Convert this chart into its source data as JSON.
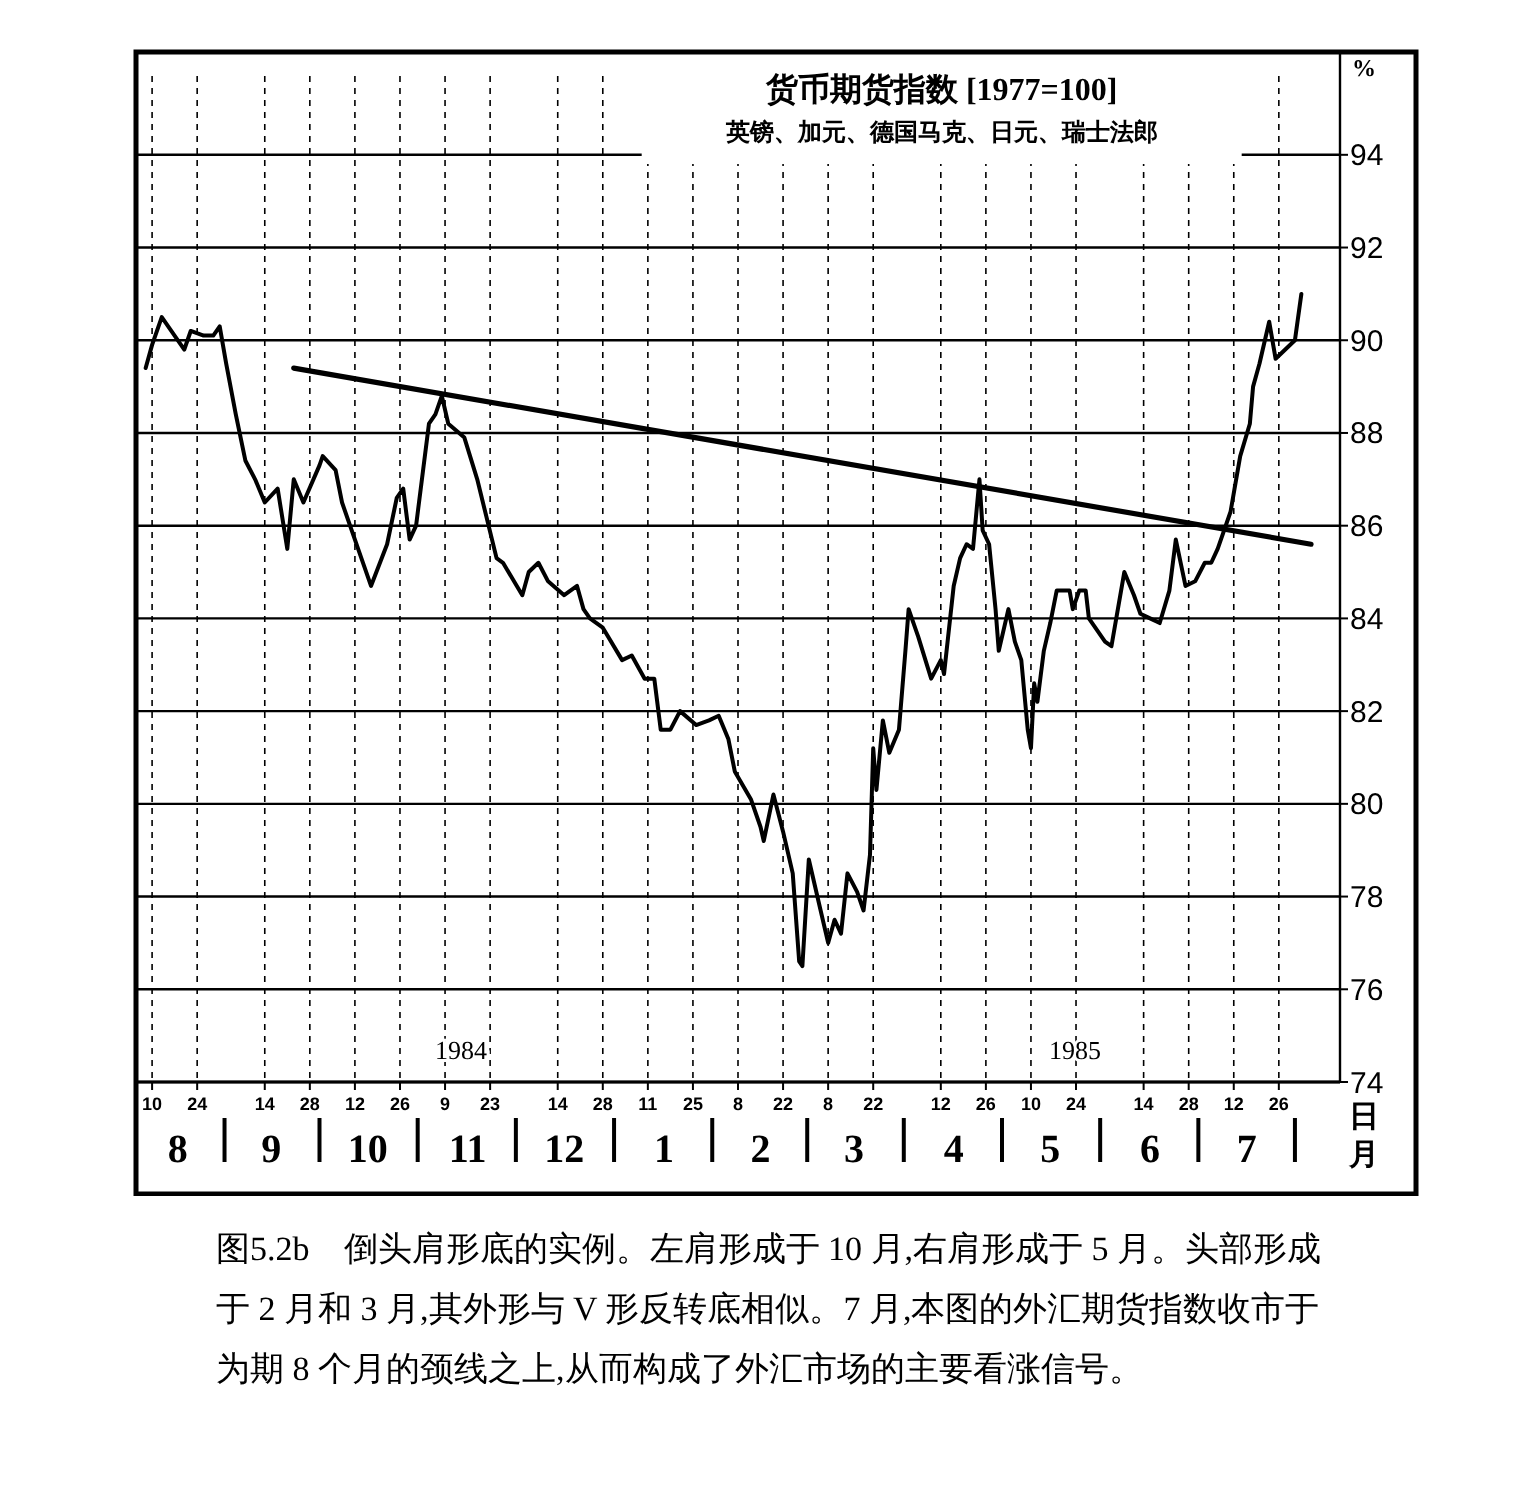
{
  "chart_data": {
    "type": "line",
    "title": "货币期货指数 [1977=100]",
    "subtitle": "英镑、加元、德国马克、日元、瑞士法郎",
    "ylabel": "%",
    "xlabel": "日",
    "x2label": "月",
    "xlim": [
      "1984-08-05",
      "1985-08-14"
    ],
    "xticks": [
      {
        "value": "1984-08-10",
        "label": "10"
      },
      {
        "value": "1984-08-24",
        "label": "24"
      },
      {
        "value": "1984-09-14",
        "label": "14"
      },
      {
        "value": "1984-09-28",
        "label": "28"
      },
      {
        "value": "1984-10-12",
        "label": "12"
      },
      {
        "value": "1984-10-26",
        "label": "26"
      },
      {
        "value": "1984-11-09",
        "label": "9"
      },
      {
        "value": "1984-11-23",
        "label": "23"
      },
      {
        "value": "1984-12-14",
        "label": "14"
      },
      {
        "value": "1984-12-28",
        "label": "28"
      },
      {
        "value": "1985-01-11",
        "label": "11"
      },
      {
        "value": "1985-01-25",
        "label": "25"
      },
      {
        "value": "1985-02-08",
        "label": "8"
      },
      {
        "value": "1985-02-22",
        "label": "22"
      },
      {
        "value": "1985-03-08",
        "label": "8"
      },
      {
        "value": "1985-03-22",
        "label": "22"
      },
      {
        "value": "1985-04-12",
        "label": "12"
      },
      {
        "value": "1985-04-26",
        "label": "26"
      },
      {
        "value": "1985-05-10",
        "label": "10"
      },
      {
        "value": "1985-05-24",
        "label": "24"
      },
      {
        "value": "1985-06-14",
        "label": "14"
      },
      {
        "value": "1985-06-28",
        "label": "28"
      },
      {
        "value": "1985-07-12",
        "label": "12"
      },
      {
        "value": "1985-07-26",
        "label": "26"
      }
    ],
    "x2lim": [
      "1984-08-05",
      "1985-08-14"
    ],
    "x2ticks": [
      {
        "value": "1984-08-18",
        "label": "8"
      },
      {
        "value": "1984-09-16",
        "label": "9"
      },
      {
        "value": "1984-10-16",
        "label": "10"
      },
      {
        "value": "1984-11-16",
        "label": "11"
      },
      {
        "value": "1984-12-16",
        "label": "12"
      },
      {
        "value": "1985-01-16",
        "label": "1"
      },
      {
        "value": "1985-02-15",
        "label": "2"
      },
      {
        "value": "1985-03-16",
        "label": "3"
      },
      {
        "value": "1985-04-16",
        "label": "4"
      },
      {
        "value": "1985-05-16",
        "label": "5"
      },
      {
        "value": "1985-06-16",
        "label": "6"
      },
      {
        "value": "1985-07-16",
        "label": "7"
      }
    ],
    "ylim": [
      74,
      95.7
    ],
    "yticks": [
      74,
      76,
      78,
      80,
      82,
      84,
      86,
      88,
      90,
      92,
      94
    ],
    "grid": true,
    "series": [
      {
        "color": "#000000",
        "x": [
          "1984-08-08",
          "1984-08-10",
          "1984-08-13",
          "1984-08-20",
          "1984-08-22",
          "1984-08-26",
          "1984-08-29",
          "1984-08-31",
          "1984-09-02",
          "1984-09-05",
          "1984-09-08",
          "1984-09-11",
          "1984-09-14",
          "1984-09-18",
          "1984-09-21",
          "1984-09-23",
          "1984-09-26",
          "1984-10-01",
          "1984-10-02",
          "1984-10-06",
          "1984-10-08",
          "1984-10-14",
          "1984-10-17",
          "1984-10-22",
          "1984-10-25",
          "1984-10-27",
          "1984-10-29",
          "1984-10-31",
          "1984-11-04",
          "1984-11-06",
          "1984-11-08",
          "1984-11-10",
          "1984-11-15",
          "1984-11-19",
          "1984-11-25",
          "1984-11-27",
          "1984-12-03",
          "1984-12-05",
          "1984-12-08",
          "1984-12-11",
          "1984-12-16",
          "1984-12-20",
          "1984-12-22",
          "1984-12-24",
          "1984-12-28",
          "1985-01-03",
          "1985-01-06",
          "1985-01-10",
          "1985-01-13",
          "1985-01-15",
          "1985-01-18",
          "1985-01-21",
          "1985-01-26",
          "1985-01-30",
          "1985-02-02",
          "1985-02-05",
          "1985-02-07",
          "1985-02-12",
          "1985-02-15",
          "1985-02-16",
          "1985-02-19",
          "1985-02-22",
          "1985-02-25",
          "1985-02-27",
          "1985-02-28",
          "1985-03-02",
          "1985-03-05",
          "1985-03-08",
          "1985-03-10",
          "1985-03-12",
          "1985-03-14",
          "1985-03-17",
          "1985-03-19",
          "1985-03-21",
          "1985-03-22",
          "1985-03-23",
          "1985-03-25",
          "1985-03-27",
          "1985-03-30",
          "1985-04-01",
          "1985-04-02",
          "1985-04-05",
          "1985-04-09",
          "1985-04-12",
          "1985-04-13",
          "1985-04-16",
          "1985-04-18",
          "1985-04-20",
          "1985-04-22",
          "1985-04-24",
          "1985-04-25",
          "1985-04-27",
          "1985-04-29",
          "1985-04-30",
          "1985-05-03",
          "1985-05-05",
          "1985-05-07",
          "1985-05-09",
          "1985-05-10",
          "1985-05-11",
          "1985-05-12",
          "1985-05-14",
          "1985-05-16",
          "1985-05-18",
          "1985-05-22",
          "1985-05-23",
          "1985-05-25",
          "1985-05-27",
          "1985-05-28",
          "1985-06-02",
          "1985-06-04",
          "1985-06-06",
          "1985-06-08",
          "1985-06-11",
          "1985-06-13",
          "1985-06-16",
          "1985-06-19",
          "1985-06-22",
          "1985-06-24",
          "1985-06-27",
          "1985-06-30",
          "1985-07-03",
          "1985-07-05",
          "1985-07-07",
          "1985-07-09",
          "1985-07-11",
          "1985-07-14",
          "1985-07-17",
          "1985-07-18",
          "1985-07-20",
          "1985-07-23",
          "1985-07-25",
          "1985-07-28",
          "1985-07-31",
          "1985-08-02"
        ],
        "values": [
          89.4,
          89.9,
          90.5,
          89.8,
          90.2,
          90.1,
          90.1,
          90.3,
          89.5,
          88.4,
          87.4,
          87.0,
          86.5,
          86.8,
          85.5,
          87.0,
          86.5,
          87.3,
          87.5,
          87.2,
          86.5,
          85.3,
          84.7,
          85.6,
          86.6,
          86.8,
          85.7,
          86.0,
          88.2,
          88.4,
          88.8,
          88.2,
          87.9,
          87.0,
          85.3,
          85.2,
          84.5,
          85.0,
          85.2,
          84.8,
          84.5,
          84.7,
          84.2,
          84.0,
          83.8,
          83.1,
          83.2,
          82.7,
          82.7,
          81.6,
          81.6,
          82.0,
          81.7,
          81.8,
          81.9,
          81.4,
          80.7,
          80.1,
          79.5,
          79.2,
          80.2,
          79.4,
          78.5,
          76.6,
          76.5,
          78.8,
          77.9,
          77.0,
          77.5,
          77.2,
          78.5,
          78.1,
          77.7,
          78.9,
          81.2,
          80.3,
          81.8,
          81.1,
          81.6,
          83.3,
          84.2,
          83.6,
          82.7,
          83.1,
          82.8,
          84.7,
          85.3,
          85.6,
          85.5,
          87.0,
          85.9,
          85.6,
          84.2,
          83.3,
          84.2,
          83.5,
          83.1,
          81.6,
          81.2,
          82.6,
          82.2,
          83.3,
          83.9,
          84.6,
          84.6,
          84.2,
          84.6,
          84.6,
          84.0,
          83.5,
          83.4,
          84.2,
          85.0,
          84.5,
          84.1,
          84.0,
          83.9,
          84.6,
          85.7,
          84.7,
          84.8,
          85.2,
          85.2,
          85.5,
          85.9,
          86.3,
          87.5,
          88.2,
          89.0,
          89.5,
          90.4,
          89.6,
          89.8,
          90.0,
          91.0
        ]
      },
      {
        "color": "#000000",
        "x": [
          "1984-09-23",
          "1985-08-05"
        ],
        "values": [
          89.4,
          85.6
        ]
      }
    ],
    "annotations": [
      "1984",
      "1985",
      "图5.2b　倒头肩形底的实例。左肩形成于 10 月,右肩形成于 5 月。头部形成于 2 月和 3 月,其外形与 V 形反转底相似。7 月,本图的外汇期货指数收市于为期 8 个月的颈线之上,从而构成了外汇市场的主要看涨信号。"
    ]
  }
}
